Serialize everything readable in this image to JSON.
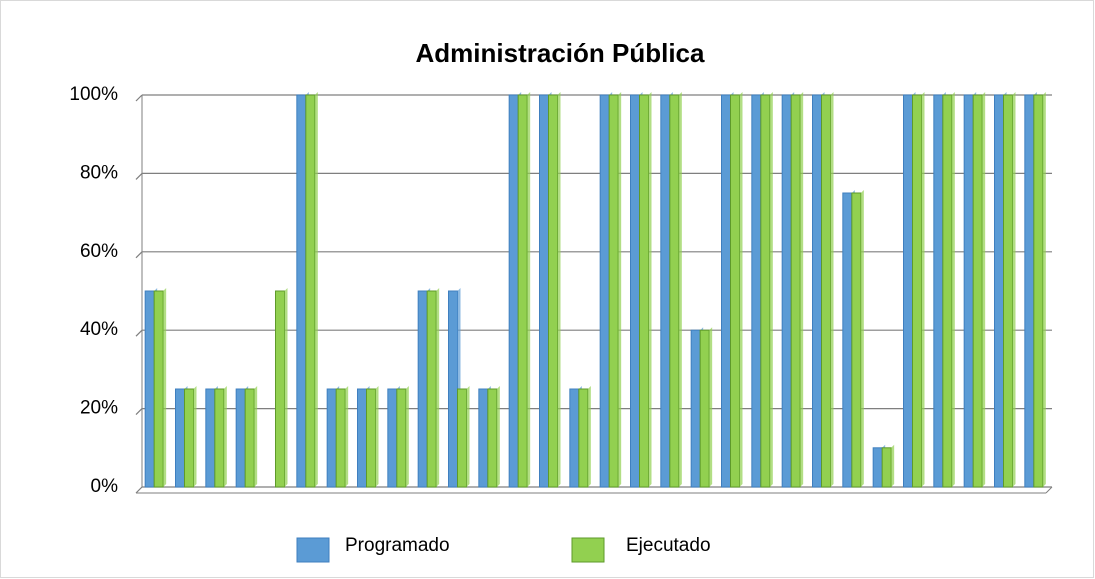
{
  "chart_data": {
    "type": "bar",
    "title": "Administración Pública",
    "categories": [
      null,
      null,
      null,
      null,
      null,
      null,
      null,
      null,
      null,
      null,
      null,
      null,
      null,
      null,
      null,
      null,
      null,
      null,
      null,
      null,
      null,
      null,
      null,
      null,
      null,
      null,
      null,
      null,
      null,
      null
    ],
    "series": [
      {
        "name": "Programado",
        "color": "#5b9bd5",
        "values": [
          50,
          25,
          25,
          25,
          0,
          100,
          25,
          25,
          25,
          50,
          50,
          25,
          100,
          100,
          25,
          100,
          100,
          100,
          40,
          100,
          100,
          100,
          100,
          75,
          10,
          100,
          100,
          100,
          100,
          100
        ]
      },
      {
        "name": "Ejecutado",
        "color": "#92d050",
        "values": [
          50,
          25,
          25,
          25,
          50,
          100,
          25,
          25,
          25,
          50,
          25,
          25,
          100,
          100,
          25,
          100,
          100,
          100,
          40,
          100,
          100,
          100,
          100,
          75,
          10,
          100,
          100,
          100,
          100,
          100
        ]
      }
    ],
    "ylim": [
      0,
      100
    ],
    "yticks": [
      {
        "value": 0,
        "label": "0%"
      },
      {
        "value": 20,
        "label": "20%"
      },
      {
        "value": 40,
        "label": "40%"
      },
      {
        "value": 60,
        "label": "60%"
      },
      {
        "value": 80,
        "label": "80%"
      },
      {
        "value": 100,
        "label": "100%"
      }
    ],
    "grid": true,
    "legend": "bottom"
  }
}
